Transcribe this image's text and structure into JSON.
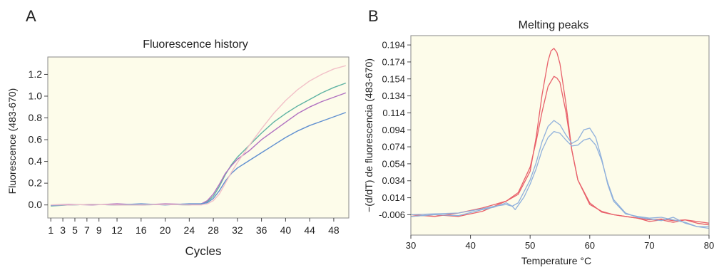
{
  "panels": {
    "a": {
      "letter": "A"
    },
    "b": {
      "letter": "B"
    }
  },
  "chart_data": [
    {
      "type": "line",
      "title": "Fluorescence history",
      "xlabel": "Cycles",
      "ylabel": "Fluorescence (483-670)",
      "xlim": [
        0.5,
        50.5
      ],
      "ylim": [
        -0.12,
        1.36
      ],
      "x_ticks": [
        1,
        3,
        5,
        7,
        9,
        12,
        16,
        20,
        24,
        28,
        32,
        36,
        40,
        44,
        48
      ],
      "y_ticks": [
        0.0,
        0.2,
        0.4,
        0.6,
        0.8,
        1.0,
        1.2
      ],
      "y_tick_labels": [
        "0.0",
        "0.2",
        "0.4",
        "0.6",
        "0.8",
        "1.0",
        "1.2"
      ],
      "grid": false,
      "colors": {
        "teal": "#5fb3a3",
        "purple": "#b070c0",
        "blue": "#5f8fd0",
        "pink": "#f2c0c8",
        "plot_background": "#fdfcea"
      },
      "series": [
        {
          "color": "teal",
          "x": [
            1,
            4,
            8,
            12,
            16,
            20,
            24,
            26,
            27,
            28,
            29,
            30,
            31,
            32,
            34,
            36,
            38,
            40,
            42,
            44,
            46,
            48,
            50
          ],
          "values": [
            -0.01,
            0,
            0.005,
            0,
            0,
            0.005,
            0,
            0.01,
            0.03,
            0.08,
            0.17,
            0.28,
            0.37,
            0.44,
            0.55,
            0.66,
            0.76,
            0.84,
            0.91,
            0.97,
            1.03,
            1.08,
            1.12
          ]
        },
        {
          "color": "purple",
          "x": [
            1,
            4,
            8,
            12,
            16,
            20,
            24,
            26,
            27,
            28,
            29,
            30,
            31,
            32,
            34,
            36,
            38,
            40,
            42,
            44,
            46,
            48,
            50
          ],
          "values": [
            0,
            0.005,
            0,
            0.01,
            0,
            0.01,
            0.005,
            0.01,
            0.04,
            0.1,
            0.19,
            0.29,
            0.36,
            0.42,
            0.5,
            0.6,
            0.68,
            0.76,
            0.84,
            0.9,
            0.95,
            0.99,
            1.03
          ]
        },
        {
          "color": "blue",
          "x": [
            1,
            4,
            8,
            12,
            16,
            20,
            24,
            26,
            27,
            28,
            29,
            30,
            31,
            32,
            34,
            36,
            38,
            40,
            42,
            44,
            46,
            48,
            50
          ],
          "values": [
            -0.005,
            0,
            0.005,
            0,
            0.01,
            0,
            0.01,
            0.01,
            0.02,
            0.06,
            0.13,
            0.22,
            0.29,
            0.34,
            0.41,
            0.48,
            0.55,
            0.62,
            0.68,
            0.73,
            0.77,
            0.81,
            0.85
          ]
        },
        {
          "color": "pink",
          "x": [
            1,
            4,
            8,
            12,
            16,
            20,
            24,
            26,
            27,
            28,
            29,
            30,
            31,
            32,
            34,
            36,
            38,
            40,
            42,
            44,
            46,
            48,
            50
          ],
          "values": [
            0,
            0,
            0.005,
            0,
            0,
            0.005,
            0,
            0,
            0.01,
            0.04,
            0.1,
            0.2,
            0.3,
            0.39,
            0.55,
            0.7,
            0.84,
            0.96,
            1.06,
            1.14,
            1.2,
            1.25,
            1.28
          ]
        }
      ]
    },
    {
      "type": "line",
      "title": "Melting peaks",
      "xlabel": "Temperature °C",
      "ylabel": "−(d/dT) de fluorescencia (483-670)",
      "xlim": [
        30,
        80
      ],
      "ylim": [
        -0.03,
        0.205
      ],
      "x_ticks": [
        30,
        40,
        50,
        60,
        70,
        80
      ],
      "y_ticks": [
        -0.006,
        0.014,
        0.034,
        0.054,
        0.074,
        0.094,
        0.114,
        0.134,
        0.154,
        0.174,
        0.194
      ],
      "y_tick_labels": [
        "-0.006",
        "0.014",
        "0.034",
        "0.054",
        "0.074",
        "0.094",
        "0.114",
        "0.134",
        "0.154",
        "0.174",
        "0.194"
      ],
      "grid": false,
      "colors": {
        "red": "#e8606a",
        "blue": "#8fb0dc",
        "plot_background": "#fdfcea"
      },
      "series": [
        {
          "color": "red",
          "x": [
            30,
            34,
            38,
            42,
            44,
            46,
            48,
            50,
            51,
            52,
            53,
            53.5,
            54,
            54.5,
            55,
            56,
            57,
            58,
            60,
            62,
            64,
            66,
            68,
            70,
            72,
            74,
            76,
            78,
            80
          ],
          "values": [
            -0.006,
            -0.008,
            -0.004,
            0.002,
            0.006,
            0.01,
            0.018,
            0.045,
            0.085,
            0.135,
            0.175,
            0.187,
            0.19,
            0.185,
            0.172,
            0.125,
            0.07,
            0.035,
            0.008,
            -0.003,
            -0.006,
            -0.008,
            -0.01,
            -0.012,
            -0.011,
            -0.013,
            -0.012,
            -0.014,
            -0.016
          ]
        },
        {
          "color": "red",
          "x": [
            30,
            34,
            38,
            42,
            44,
            46,
            48,
            50,
            51,
            52,
            53,
            54,
            54.5,
            55,
            56,
            57,
            58,
            60,
            62,
            64,
            66,
            68,
            70,
            72,
            74,
            76,
            78,
            80
          ],
          "values": [
            -0.008,
            -0.006,
            -0.008,
            -0.002,
            0.004,
            0.01,
            0.02,
            0.05,
            0.08,
            0.115,
            0.145,
            0.157,
            0.155,
            0.15,
            0.115,
            0.07,
            0.035,
            0.006,
            -0.002,
            -0.006,
            -0.008,
            -0.01,
            -0.014,
            -0.012,
            -0.015,
            -0.012,
            -0.016,
            -0.018
          ]
        },
        {
          "color": "blue",
          "x": [
            30,
            34,
            38,
            42,
            44,
            46,
            47,
            48,
            50,
            51,
            52,
            53,
            54,
            55,
            56,
            57,
            58,
            59,
            60,
            61,
            62,
            63,
            64,
            66,
            68,
            70,
            72,
            74,
            76,
            78,
            80
          ],
          "values": [
            -0.006,
            -0.005,
            -0.004,
            0.001,
            0.004,
            0.006,
            0.004,
            0.008,
            0.035,
            0.055,
            0.08,
            0.098,
            0.105,
            0.1,
            0.088,
            0.078,
            0.082,
            0.094,
            0.096,
            0.085,
            0.06,
            0.03,
            0.01,
            -0.005,
            -0.008,
            -0.01,
            -0.009,
            -0.012,
            -0.015,
            -0.02,
            -0.022
          ]
        },
        {
          "color": "blue",
          "x": [
            30,
            34,
            38,
            42,
            44,
            46,
            47,
            47.5,
            48,
            49,
            50,
            51,
            52,
            53,
            54,
            55,
            56,
            57,
            58,
            59,
            60,
            61,
            62,
            63,
            64,
            66,
            68,
            70,
            72,
            74,
            76,
            78,
            80
          ],
          "values": [
            -0.008,
            -0.006,
            -0.007,
            0.0,
            0.003,
            0.008,
            0.004,
            0.0,
            0.005,
            0.015,
            0.03,
            0.048,
            0.07,
            0.085,
            0.092,
            0.09,
            0.082,
            0.075,
            0.076,
            0.082,
            0.084,
            0.076,
            0.058,
            0.032,
            0.012,
            -0.004,
            -0.009,
            -0.011,
            -0.013,
            -0.009,
            -0.016,
            -0.02,
            -0.02
          ]
        }
      ]
    }
  ]
}
